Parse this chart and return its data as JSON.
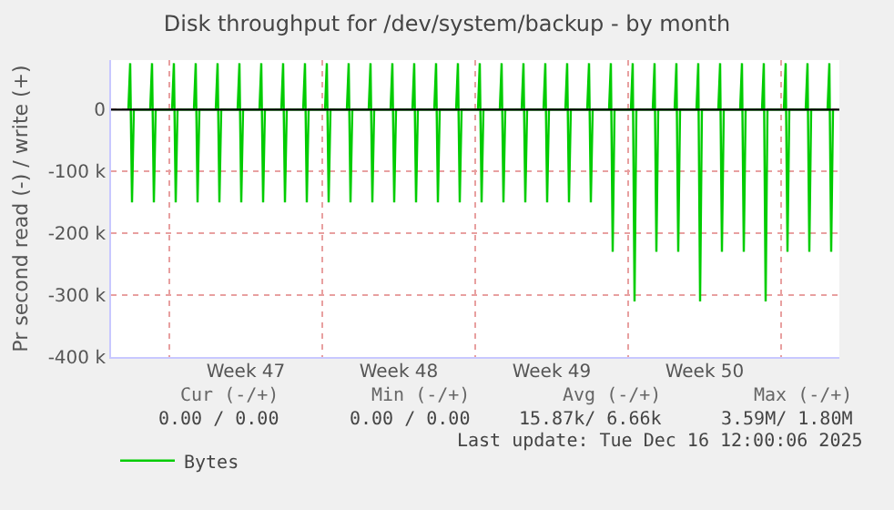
{
  "chart_data": {
    "type": "line",
    "title": "Disk throughput for /dev/system/backup - by month",
    "ylabel": "Pr second read (-) / write (+)",
    "xlim": [
      "2025-11-14T08:00",
      "2025-12-17T16:00"
    ],
    "xticks": [
      {
        "value": "2025-11-17",
        "label": null
      },
      {
        "value": "2025-11-20T12:00",
        "label": "Week 47"
      },
      {
        "value": "2025-11-24",
        "label": null
      },
      {
        "value": "2025-11-27T12:00",
        "label": "Week 48"
      },
      {
        "value": "2025-12-01",
        "label": null
      },
      {
        "value": "2025-12-04T12:00",
        "label": "Week 49"
      },
      {
        "value": "2025-12-08",
        "label": null
      },
      {
        "value": "2025-12-11T12:00",
        "label": "Week 50"
      },
      {
        "value": "2025-12-15",
        "label": null
      }
    ],
    "ylim": [
      -400000,
      80000
    ],
    "yticks": [
      {
        "value": 0,
        "label": "0"
      },
      {
        "value": -100000,
        "label": "-100 k"
      },
      {
        "value": -200000,
        "label": "-200 k"
      },
      {
        "value": -300000,
        "label": "-300 k"
      },
      {
        "value": -400000,
        "label": "-400 k"
      }
    ],
    "grid": true,
    "legend": "bottom left",
    "line_style": "solid",
    "ref_lines": [
      {
        "axis": "y",
        "value": 0,
        "color": "#000000"
      }
    ],
    "series": [
      {
        "name": "Bytes",
        "color": "#00cc00",
        "x": [
          "2025-11-15T03:00",
          "2025-11-15T05:00",
          "2025-11-15T07:00",
          "2025-11-15T09:00",
          "2025-11-16T03:00",
          "2025-11-16T05:00",
          "2025-11-16T07:00",
          "2025-11-16T09:00",
          "2025-11-17T03:00",
          "2025-11-17T05:00",
          "2025-11-17T07:00",
          "2025-11-17T09:00",
          "2025-11-18T03:00",
          "2025-11-18T05:00",
          "2025-11-18T07:00",
          "2025-11-18T09:00",
          "2025-11-19T03:00",
          "2025-11-19T05:00",
          "2025-11-19T07:00",
          "2025-11-19T09:00",
          "2025-11-20T03:00",
          "2025-11-20T05:00",
          "2025-11-20T07:00",
          "2025-11-20T09:00",
          "2025-11-21T03:00",
          "2025-11-21T05:00",
          "2025-11-21T07:00",
          "2025-11-21T09:00",
          "2025-11-22T03:00",
          "2025-11-22T05:00",
          "2025-11-22T07:00",
          "2025-11-22T09:00",
          "2025-11-23T03:00",
          "2025-11-23T05:00",
          "2025-11-23T07:00",
          "2025-11-23T09:00",
          "2025-11-24T03:00",
          "2025-11-24T05:00",
          "2025-11-24T07:00",
          "2025-11-24T09:00",
          "2025-11-25T03:00",
          "2025-11-25T05:00",
          "2025-11-25T07:00",
          "2025-11-25T09:00",
          "2025-11-26T03:00",
          "2025-11-26T05:00",
          "2025-11-26T07:00",
          "2025-11-26T09:00",
          "2025-11-27T03:00",
          "2025-11-27T05:00",
          "2025-11-27T07:00",
          "2025-11-27T09:00",
          "2025-11-28T03:00",
          "2025-11-28T05:00",
          "2025-11-28T07:00",
          "2025-11-28T09:00",
          "2025-11-29T03:00",
          "2025-11-29T05:00",
          "2025-11-29T07:00",
          "2025-11-29T09:00",
          "2025-11-30T03:00",
          "2025-11-30T05:00",
          "2025-11-30T07:00",
          "2025-11-30T09:00",
          "2025-12-01T03:00",
          "2025-12-01T05:00",
          "2025-12-01T07:00",
          "2025-12-01T09:00",
          "2025-12-02T03:00",
          "2025-12-02T05:00",
          "2025-12-02T07:00",
          "2025-12-02T09:00",
          "2025-12-03T03:00",
          "2025-12-03T05:00",
          "2025-12-03T07:00",
          "2025-12-03T09:00",
          "2025-12-04T03:00",
          "2025-12-04T05:00",
          "2025-12-04T07:00",
          "2025-12-04T09:00",
          "2025-12-05T03:00",
          "2025-12-05T05:00",
          "2025-12-05T07:00",
          "2025-12-05T09:00",
          "2025-12-06T03:00",
          "2025-12-06T05:00",
          "2025-12-06T07:00",
          "2025-12-06T09:00",
          "2025-12-07T03:00",
          "2025-12-07T05:00",
          "2025-12-07T07:00",
          "2025-12-07T09:00",
          "2025-12-08T03:00",
          "2025-12-08T05:00",
          "2025-12-08T07:00",
          "2025-12-08T09:00",
          "2025-12-09T03:00",
          "2025-12-09T05:00",
          "2025-12-09T07:00",
          "2025-12-09T09:00",
          "2025-12-10T03:00",
          "2025-12-10T05:00",
          "2025-12-10T07:00",
          "2025-12-10T09:00",
          "2025-12-11T03:00",
          "2025-12-11T05:00",
          "2025-12-11T07:00",
          "2025-12-11T09:00",
          "2025-12-12T03:00",
          "2025-12-12T05:00",
          "2025-12-12T07:00",
          "2025-12-12T09:00",
          "2025-12-13T03:00",
          "2025-12-13T05:00",
          "2025-12-13T07:00",
          "2025-12-13T09:00",
          "2025-12-14T03:00",
          "2025-12-14T05:00",
          "2025-12-14T07:00",
          "2025-12-14T09:00",
          "2025-12-15T03:00",
          "2025-12-15T05:00",
          "2025-12-15T07:00",
          "2025-12-15T09:00",
          "2025-12-16T03:00",
          "2025-12-16T05:00",
          "2025-12-16T07:00",
          "2025-12-16T09:00",
          "2025-12-17T03:00",
          "2025-12-17T05:00",
          "2025-12-17T07:00",
          "2025-12-17T09:00"
        ],
        "values": [
          0,
          75000,
          -150000,
          0,
          0,
          75000,
          -150000,
          0,
          0,
          75000,
          -150000,
          0,
          0,
          75000,
          -150000,
          0,
          0,
          75000,
          -150000,
          0,
          0,
          75000,
          -150000,
          0,
          0,
          75000,
          -150000,
          0,
          0,
          75000,
          -150000,
          0,
          0,
          75000,
          -150000,
          0,
          0,
          75000,
          -150000,
          0,
          0,
          75000,
          -150000,
          0,
          0,
          75000,
          -150000,
          0,
          0,
          75000,
          -150000,
          0,
          0,
          75000,
          -150000,
          0,
          0,
          75000,
          -150000,
          0,
          0,
          75000,
          -150000,
          0,
          0,
          75000,
          -150000,
          0,
          0,
          75000,
          -150000,
          0,
          0,
          75000,
          -150000,
          0,
          0,
          75000,
          -150000,
          0,
          0,
          75000,
          -150000,
          0,
          0,
          75000,
          -150000,
          0,
          0,
          75000,
          -230000,
          0,
          0,
          75000,
          -310000,
          0,
          0,
          75000,
          -230000,
          0,
          0,
          75000,
          -230000,
          0,
          0,
          75000,
          -310000,
          0,
          0,
          75000,
          -230000,
          0,
          0,
          75000,
          -230000,
          0,
          0,
          75000,
          -310000,
          0,
          0,
          75000,
          -230000,
          0,
          0,
          75000,
          -230000,
          0,
          0,
          75000,
          -230000,
          0
        ]
      }
    ],
    "annotations": [
      "Cur (-/+)",
      "Min (-/+)",
      "Avg (-/+)",
      "Max (-/+)",
      "0.00 / 0.00",
      "0.00 / 0.00",
      "15.87k/ 6.66k",
      "3.59M/ 1.80M",
      "Last update: Tue Dec 16 12:00:06 2025"
    ]
  }
}
